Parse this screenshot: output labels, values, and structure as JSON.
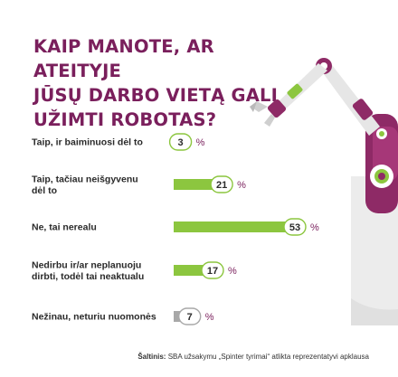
{
  "title_lines": [
    "KAIP MANOTE, AR ATEITYJE",
    "JŪSŲ DARBO VIETĄ GALI",
    "UŽIMTI ROBOTAS?"
  ],
  "source": {
    "label": "Šaltinis:",
    "text": "SBA užsakymu „Spinter tyrimai“ atlikta reprezentatyvi apklausa"
  },
  "colors": {
    "accent": "#7a1f5c",
    "bar_green": "#8cc63f",
    "bar_gray": "#a8a8a8",
    "robot_gray": "#e6e6e6",
    "robot_pink": "#8e2a66"
  },
  "chart_data": {
    "type": "bar",
    "orientation": "horizontal",
    "categories": [
      [
        "Taip, ir baiminuosi dėl to"
      ],
      [
        "Taip, tačiau neišgyvenu",
        "dėl to"
      ],
      [
        "Ne, tai nerealu"
      ],
      [
        "Nedirbu ir/ar neplanuoju",
        "dirbti, todėl tai neaktualu"
      ],
      [
        "Nežinau, neturiu nuomonės"
      ]
    ],
    "values": [
      3,
      21,
      53,
      17,
      7
    ],
    "unit": "%",
    "bar_colors": [
      "#8cc63f",
      "#8cc63f",
      "#8cc63f",
      "#8cc63f",
      "#a8a8a8"
    ],
    "xlim": [
      0,
      53
    ],
    "grid": false,
    "legend": "none"
  }
}
